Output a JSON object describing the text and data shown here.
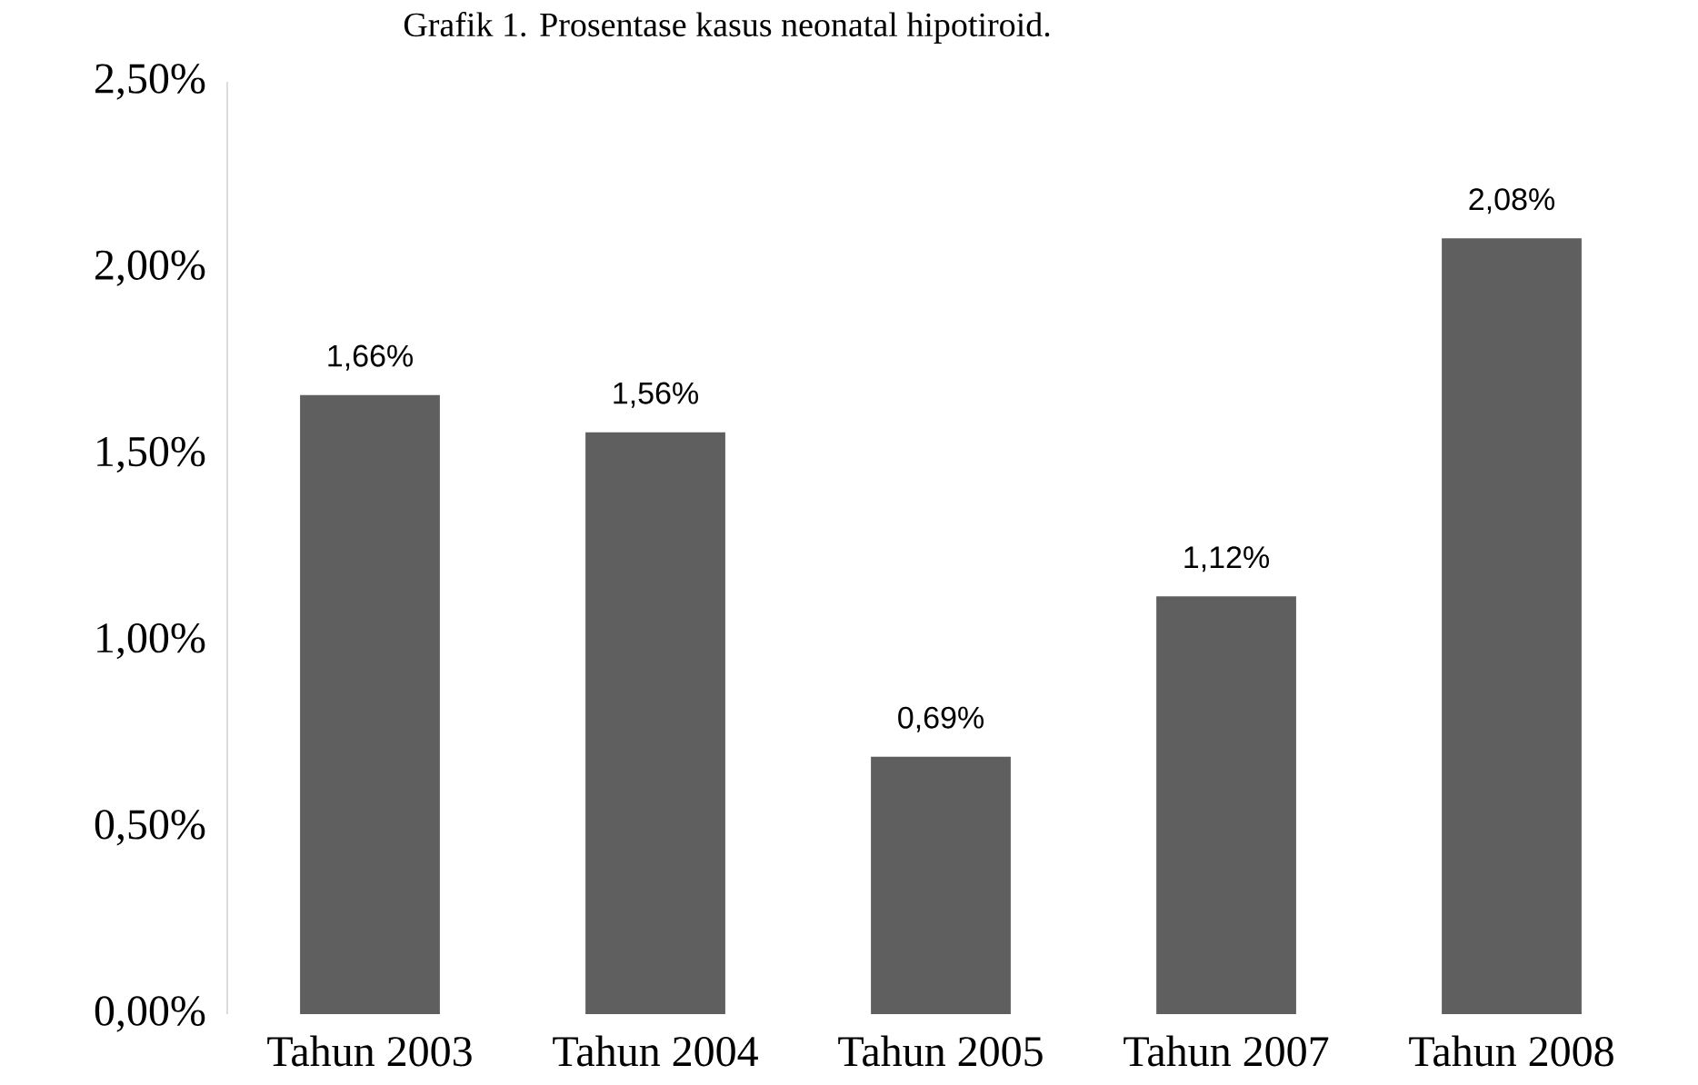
{
  "chart_data": {
    "type": "bar",
    "title": "Grafik 1. Prosentase kasus neonatal hipotiroid.",
    "categories": [
      "Tahun 2003",
      "Tahun 2004",
      "Tahun 2005",
      "Tahun 2007",
      "Tahun 2008"
    ],
    "values": [
      1.66,
      1.56,
      0.69,
      1.12,
      2.08
    ],
    "value_labels": [
      "1,66%",
      "1,56%",
      "0,69%",
      "1,12%",
      "2,08%"
    ],
    "color": "#5f5f5f",
    "ylim": [
      0,
      2.5
    ],
    "yticks": [
      {
        "value": 0,
        "label": "0,00%"
      },
      {
        "value": 0.5,
        "label": "0,50%"
      },
      {
        "value": 1,
        "label": "1,00%"
      },
      {
        "value": 1.5,
        "label": "1,50%"
      },
      {
        "value": 2,
        "label": "2,00%"
      },
      {
        "value": 2.5,
        "label": "2,50%"
      }
    ],
    "grid": false
  }
}
